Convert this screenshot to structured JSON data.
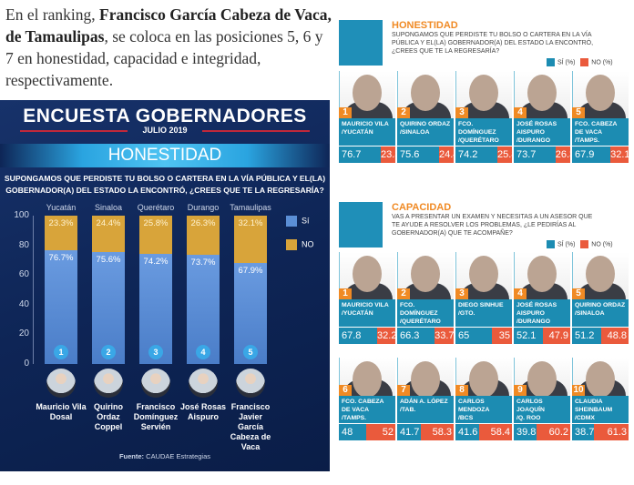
{
  "article": {
    "pre": "En el ranking, ",
    "bold": "Francisco García Cabeza de Vaca, de Tamaulipas",
    "post": ", se coloca en las posiciones 5, 6 y 7 en honestidad, capacidad e integridad, respectivamente."
  },
  "infographic": {
    "title": "ENCUESTA GOBERNADORES",
    "date": "JULIO 2019",
    "section": "HONESTIDAD",
    "question": "SUPONGAMOS QUE PERDISTE TU BOLSO O CARTERA EN LA VÍA PÚBLICA Y EL(LA) GOBERNADOR(A) DEL ESTADO LA ENCONTRÓ, ¿CREES QUE TE LA REGRESARÍA?",
    "source_label": "Fuente:",
    "source": "CAUDAE Estrategias"
  },
  "chart_data": {
    "type": "bar",
    "stacked": true,
    "categories": [
      "Yucatán",
      "Sinaloa",
      "Querétaro",
      "Durango",
      "Tamaulipas"
    ],
    "ranks": [
      "1",
      "2",
      "3",
      "4",
      "5"
    ],
    "governors": [
      "Mauricio Vila Dosal",
      "Quirino Ordaz Coppel",
      "Francisco Domínguez Servién",
      "José Rosas Aispuro",
      "Francisco Javier García Cabeza de Vaca"
    ],
    "series": [
      {
        "name": "Sí",
        "values": [
          76.7,
          75.6,
          74.2,
          73.7,
          67.9
        ],
        "labels": [
          "76.7%",
          "75.6%",
          "74.2%",
          "73.7%",
          "67.9%"
        ],
        "color": "#5b8fd6"
      },
      {
        "name": "NO",
        "values": [
          23.3,
          24.4,
          25.8,
          26.3,
          32.1
        ],
        "labels": [
          "23.3%",
          "24.4%",
          "25.8%",
          "26.3%",
          "32.1%"
        ],
        "color": "#d8a43a"
      }
    ],
    "yticks": [
      "100",
      "80",
      "60",
      "40",
      "20",
      "0"
    ],
    "ylim": [
      0,
      100
    ],
    "legend": "right"
  },
  "honestidad": {
    "title": "HONESTIDAD",
    "question": "SUPONGAMOS QUE PERDISTE TU BOLSO O CARTERA EN LA VÍA PÚBLICA Y EL(LA) GOBERNADOR(A) DEL ESTADO LA ENCONTRÓ, ¿CREES QUE TE LA REGRESARÍA?",
    "legend_si": "SÍ (%)",
    "legend_no": "NO (%)",
    "cards": [
      {
        "rank": "1",
        "name": "MAURICIO VILA",
        "state": "/YUCATÁN",
        "si": "76.7",
        "no": "23.3"
      },
      {
        "rank": "2",
        "name": "QUIRINO ORDAZ",
        "state": "/SINALOA",
        "si": "75.6",
        "no": "24.4"
      },
      {
        "rank": "3",
        "name": "FCO. DOMÍNGUEZ",
        "state": "/QUERÉTARO",
        "si": "74.2",
        "no": "25.8"
      },
      {
        "rank": "4",
        "name": "JOSÉ ROSAS AISPURO",
        "state": "/DURANGO",
        "si": "73.7",
        "no": "26.3"
      },
      {
        "rank": "5",
        "name": "FCO. CABEZA DE VACA",
        "state": "/TAMPS.",
        "si": "67.9",
        "no": "32.1"
      }
    ]
  },
  "capacidad": {
    "title": "CAPACIDAD",
    "question": "VAS A PRESENTAR UN EXAMEN Y NECESITAS A UN ASESOR QUE TE AYUDE A RESOLVER LOS PROBLEMAS, ¿LE PEDIRÍAS AL GOBERNADOR(A) QUE TE ACOMPAÑE?",
    "legend_si": "SÍ (%)",
    "legend_no": "NO (%)",
    "cards": [
      {
        "rank": "1",
        "name": "MAURICIO VILA",
        "state": "/YUCATÁN",
        "si": "67.8",
        "no": "32.2"
      },
      {
        "rank": "2",
        "name": "FCO. DOMÍNGUEZ",
        "state": "/QUERÉTARO",
        "si": "66.3",
        "no": "33.7"
      },
      {
        "rank": "3",
        "name": "DIEGO SINHUE",
        "state": "/GTO.",
        "si": "65",
        "no": "35"
      },
      {
        "rank": "4",
        "name": "JOSÉ ROSAS AISPURO",
        "state": "/DURANGO",
        "si": "52.1",
        "no": "47.9"
      },
      {
        "rank": "5",
        "name": "QUIRINO ORDAZ",
        "state": "/SINALOA",
        "si": "51.2",
        "no": "48.8"
      },
      {
        "rank": "6",
        "name": "FCO. CABEZA DE VACA",
        "state": "/TAMPS.",
        "si": "48",
        "no": "52"
      },
      {
        "rank": "7",
        "name": "ADÁN A. LÓPEZ",
        "state": "/TAB.",
        "si": "41.7",
        "no": "58.3"
      },
      {
        "rank": "8",
        "name": "CARLOS MENDOZA",
        "state": "/BCS",
        "si": "41.6",
        "no": "58.4"
      },
      {
        "rank": "9",
        "name": "CARLOS JOAQUÍN",
        "state": "/Q. ROO",
        "si": "39.8",
        "no": "60.2"
      },
      {
        "rank": "10",
        "name": "CLAUDIA SHEINBAUM",
        "state": "/CDMX",
        "si": "38.7",
        "no": "61.3"
      }
    ]
  }
}
